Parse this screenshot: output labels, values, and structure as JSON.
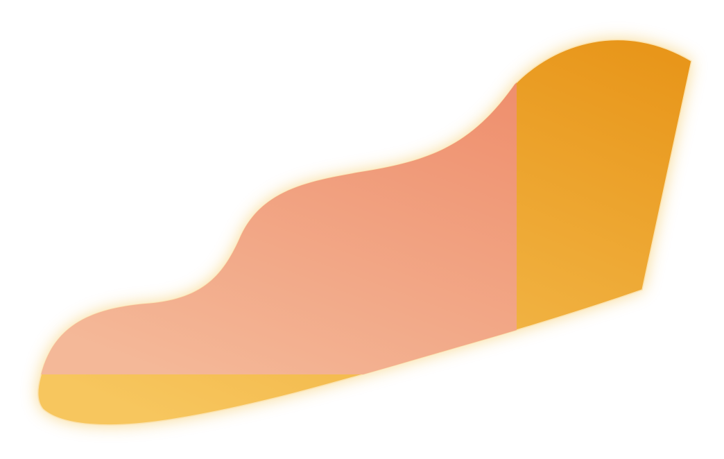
{
  "colors": {
    "base_top": "#e8961a",
    "base_bottom": "#f7c65e",
    "overlay_top": "#ee8a68",
    "overlay_bottom": "#f4b898",
    "glow_base": "#f3c04a",
    "glow_overlay": "#f39a9a"
  }
}
